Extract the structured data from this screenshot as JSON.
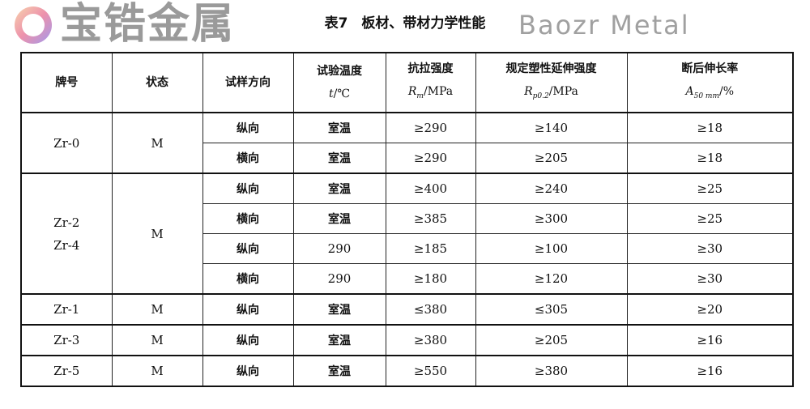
{
  "title": "表7　板材、带材力学性能",
  "headers": {
    "grade": "牌号",
    "state": "状态",
    "direction": "试样方向",
    "temp": "试验温度",
    "temp_sym": "t",
    "temp_unit": "/℃",
    "rm": "抗拉强度",
    "rm_sym": "R",
    "rm_sub": "m",
    "rm_unit": "/MPa",
    "rp": "规定塑性延伸强度",
    "rp_sym": "R",
    "rp_sub": "p0.2",
    "rp_unit": "/MPa",
    "a": "断后伸长率",
    "a_sym": "A",
    "a_sub": "50 mm",
    "a_unit": "/%"
  },
  "groups": [
    {
      "grade": "Zr-0",
      "grade2": "",
      "state": "M",
      "rows": [
        {
          "direction": "纵向",
          "temp": "室温",
          "rm": "≥290",
          "rp": "≥140",
          "a": "≥18"
        },
        {
          "direction": "横向",
          "temp": "室温",
          "rm": "≥290",
          "rp": "≥205",
          "a": "≥18"
        }
      ]
    },
    {
      "grade": "Zr-2",
      "grade2": "Zr-4",
      "state": "M",
      "rows": [
        {
          "direction": "纵向",
          "temp": "室温",
          "rm": "≥400",
          "rp": "≥240",
          "a": "≥25"
        },
        {
          "direction": "横向",
          "temp": "室温",
          "rm": "≥385",
          "rp": "≥300",
          "a": "≥25"
        },
        {
          "direction": "纵向",
          "temp": "290",
          "rm": "≥185",
          "rp": "≥100",
          "a": "≥30"
        },
        {
          "direction": "横向",
          "temp": "290",
          "rm": "≥180",
          "rp": "≥120",
          "a": "≥30"
        }
      ]
    },
    {
      "grade": "Zr-1",
      "grade2": "",
      "state": "M",
      "rows": [
        {
          "direction": "纵向",
          "temp": "室温",
          "rm": "≤380",
          "rp": "≤305",
          "a": "≥20"
        }
      ]
    },
    {
      "grade": "Zr-3",
      "grade2": "",
      "state": "M",
      "rows": [
        {
          "direction": "纵向",
          "temp": "室温",
          "rm": "≥380",
          "rp": "≥205",
          "a": "≥16"
        }
      ]
    },
    {
      "grade": "Zr-5",
      "grade2": "",
      "state": "M",
      "rows": [
        {
          "direction": "纵向",
          "temp": "室温",
          "rm": "≥550",
          "rp": "≥380",
          "a": "≥16"
        }
      ]
    }
  ],
  "watermark": {
    "cn": "宝锆金属",
    "en": "Baozr Metal"
  }
}
